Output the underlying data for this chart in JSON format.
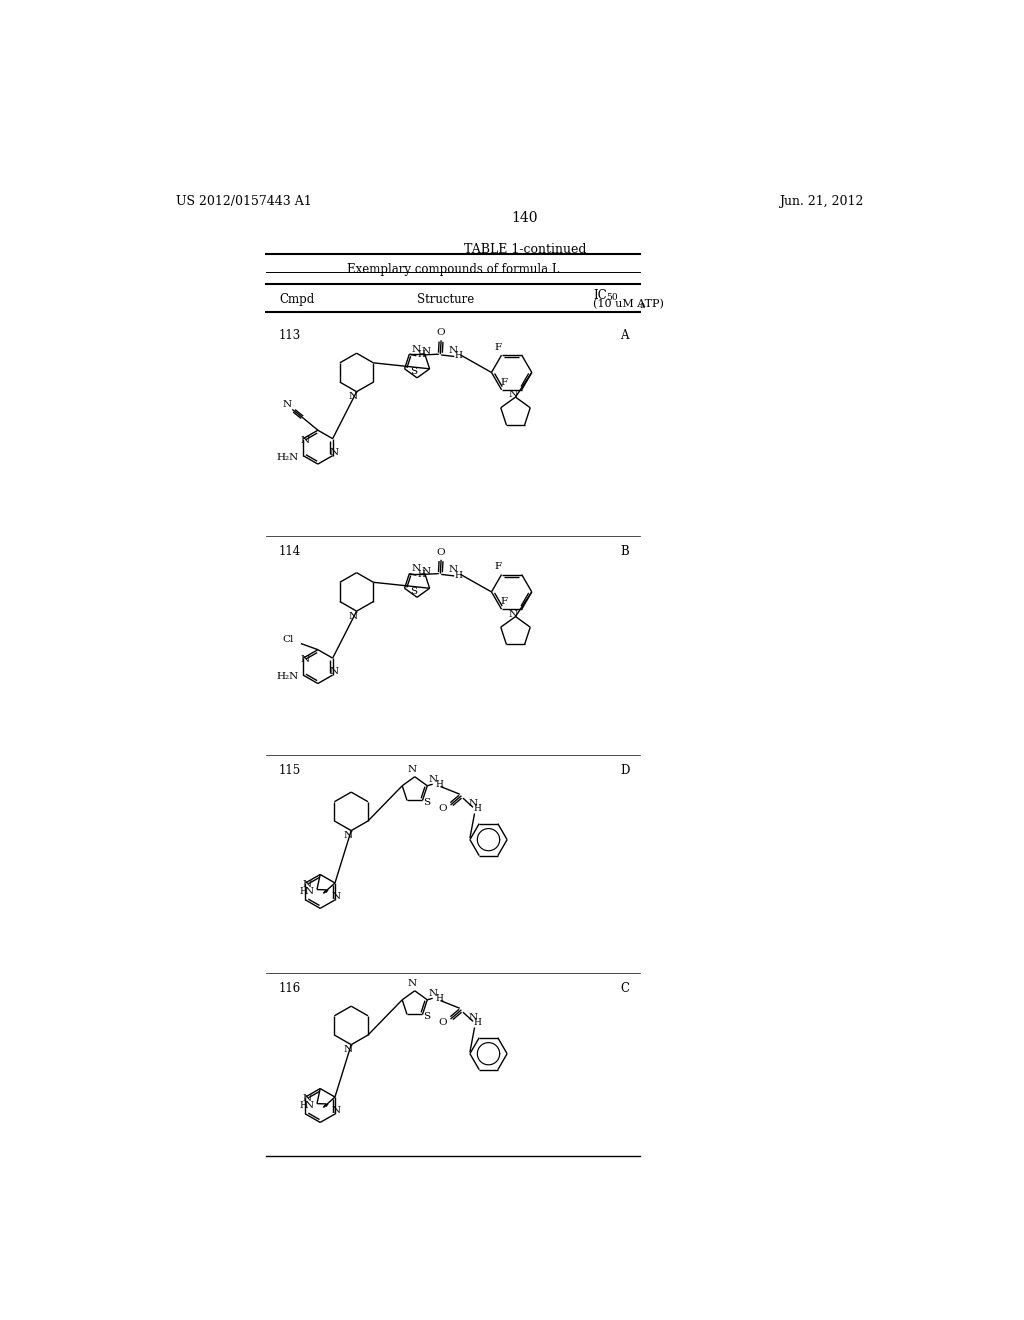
{
  "page_number": "140",
  "patent_number": "US 2012/0157443 A1",
  "patent_date": "Jun. 21, 2012",
  "table_title": "TABLE 1-continued",
  "table_subtitle": "Exemplary compounds of formula I.",
  "background_color": "#ffffff",
  "text_color": "#000000"
}
